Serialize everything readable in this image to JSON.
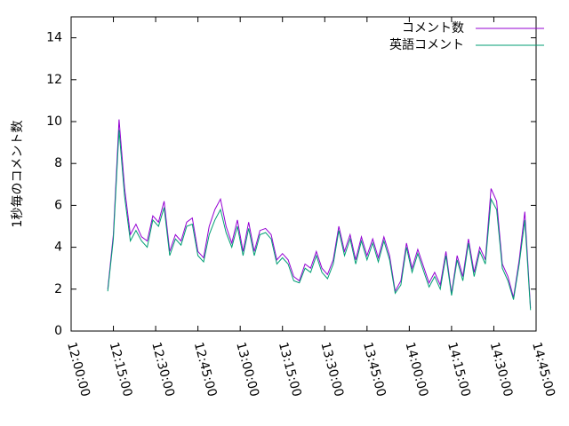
{
  "chart_data": {
    "type": "line",
    "y_label": "1秒毎のコメント数",
    "x": [
      "12:13:00",
      "12:15:00",
      "12:17:00",
      "12:19:00",
      "12:21:00",
      "12:23:00",
      "12:25:00",
      "12:27:00",
      "12:29:00",
      "12:31:00",
      "12:33:00",
      "12:35:00",
      "12:37:00",
      "12:39:00",
      "12:41:00",
      "12:43:00",
      "12:45:00",
      "12:47:00",
      "12:49:00",
      "12:51:00",
      "12:53:00",
      "12:55:00",
      "12:57:00",
      "12:59:00",
      "13:01:00",
      "13:03:00",
      "13:05:00",
      "13:07:00",
      "13:09:00",
      "13:11:00",
      "13:13:00",
      "13:15:00",
      "13:17:00",
      "13:19:00",
      "13:21:00",
      "13:23:00",
      "13:25:00",
      "13:27:00",
      "13:29:00",
      "13:31:00",
      "13:33:00",
      "13:35:00",
      "13:37:00",
      "13:39:00",
      "13:41:00",
      "13:43:00",
      "13:45:00",
      "13:47:00",
      "13:49:00",
      "13:51:00",
      "13:53:00",
      "13:55:00",
      "13:57:00",
      "13:59:00",
      "14:01:00",
      "14:03:00",
      "14:05:00",
      "14:07:00",
      "14:09:00",
      "14:11:00",
      "14:13:00",
      "14:15:00",
      "14:17:00",
      "14:19:00",
      "14:21:00",
      "14:23:00",
      "14:25:00",
      "14:27:00",
      "14:29:00",
      "14:31:00",
      "14:33:00",
      "14:35:00",
      "14:37:00",
      "14:39:00",
      "14:41:00",
      "14:43:00"
    ],
    "series": [
      {
        "name": "コメント数",
        "color": "#9400d3",
        "values": [
          2.0,
          4.6,
          10.1,
          6.8,
          4.6,
          5.1,
          4.5,
          4.3,
          5.5,
          5.2,
          6.2,
          3.8,
          4.6,
          4.3,
          5.2,
          5.4,
          3.8,
          3.5,
          5.0,
          5.8,
          6.3,
          5.0,
          4.2,
          5.3,
          3.8,
          5.2,
          3.8,
          4.8,
          4.9,
          4.6,
          3.4,
          3.7,
          3.4,
          2.6,
          2.4,
          3.2,
          3.0,
          3.8,
          3.0,
          2.7,
          3.4,
          5.0,
          3.8,
          4.6,
          3.4,
          4.5,
          3.6,
          4.4,
          3.5,
          4.5,
          3.6,
          1.9,
          2.4,
          4.2,
          3.0,
          3.9,
          3.1,
          2.3,
          2.8,
          2.2,
          3.8,
          1.8,
          3.6,
          2.6,
          4.4,
          2.8,
          4.0,
          3.4,
          6.8,
          6.2,
          3.2,
          2.6,
          1.6,
          3.4,
          5.7,
          1.1
        ]
      },
      {
        "name": "英語コメント",
        "color": "#009e73",
        "values": [
          1.9,
          4.4,
          9.6,
          6.4,
          4.3,
          4.8,
          4.3,
          4.0,
          5.3,
          5.0,
          5.9,
          3.6,
          4.4,
          4.1,
          5.0,
          5.1,
          3.6,
          3.3,
          4.6,
          5.3,
          5.8,
          4.7,
          4.0,
          5.0,
          3.6,
          4.9,
          3.6,
          4.6,
          4.7,
          4.4,
          3.2,
          3.5,
          3.2,
          2.4,
          2.3,
          3.0,
          2.8,
          3.6,
          2.8,
          2.5,
          3.2,
          4.8,
          3.6,
          4.4,
          3.2,
          4.3,
          3.4,
          4.2,
          3.3,
          4.3,
          3.4,
          1.8,
          2.2,
          4.0,
          2.8,
          3.7,
          2.9,
          2.1,
          2.6,
          2.0,
          3.6,
          1.7,
          3.4,
          2.4,
          4.2,
          2.6,
          3.8,
          3.2,
          6.3,
          5.8,
          3.0,
          2.4,
          1.5,
          3.2,
          5.3,
          1.0
        ]
      }
    ],
    "xlim": [
      "12:00:00",
      "14:45:00"
    ],
    "xticks": [
      "12:00:00",
      "12:15:00",
      "12:30:00",
      "12:45:00",
      "13:00:00",
      "13:15:00",
      "13:30:00",
      "13:45:00",
      "14:00:00",
      "14:15:00",
      "14:30:00",
      "14:45:00"
    ],
    "ylim": [
      0,
      15
    ],
    "yticks": [
      0,
      2,
      4,
      6,
      8,
      10,
      12,
      14
    ],
    "legend": "top-right"
  }
}
